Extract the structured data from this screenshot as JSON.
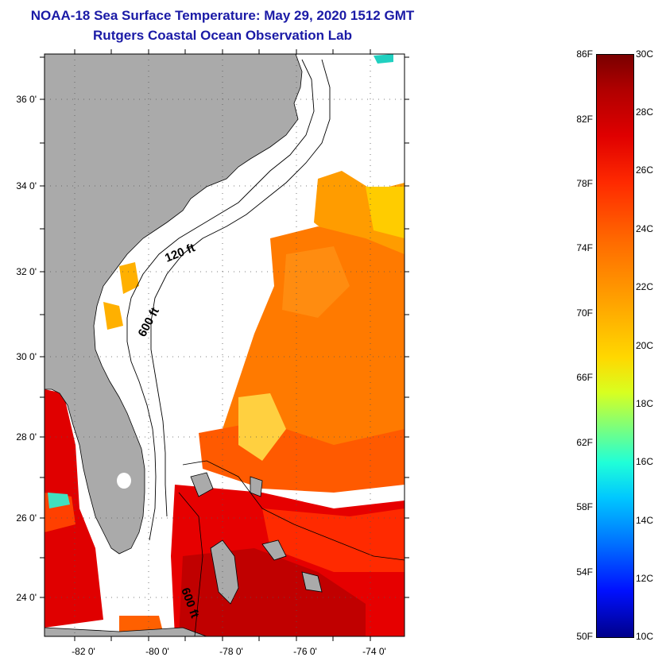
{
  "title": {
    "line1": "NOAA-18 Sea Surface Temperature:  May 29, 2020 1512 GMT",
    "line2": "Rutgers Coastal Ocean Observation Lab"
  },
  "map": {
    "latitude_labels": [
      "36 0'",
      "34 0'",
      "32 0'",
      "30 0'",
      "28 0'",
      "26 0'",
      "24 0'"
    ],
    "longitude_labels": [
      "-82 0'",
      "-80 0'",
      "-78 0'",
      "-76 0'",
      "-74 0'"
    ],
    "contour_labels": [
      "120 ft",
      "600 ft",
      "600 ft"
    ],
    "colors": {
      "land": "#aaaaaa",
      "cloud": "#ffffff",
      "grid": "#000000"
    }
  },
  "colorbar": {
    "fahrenheit_labels": [
      "86F",
      "82F",
      "78F",
      "74F",
      "70F",
      "66F",
      "62F",
      "58F",
      "54F",
      "50F"
    ],
    "celsius_labels": [
      "30C",
      "28C",
      "26C",
      "24C",
      "22C",
      "20C",
      "18C",
      "16C",
      "14C",
      "12C",
      "10C"
    ],
    "range_celsius": [
      10,
      30
    ],
    "range_fahrenheit": [
      50,
      86
    ]
  }
}
